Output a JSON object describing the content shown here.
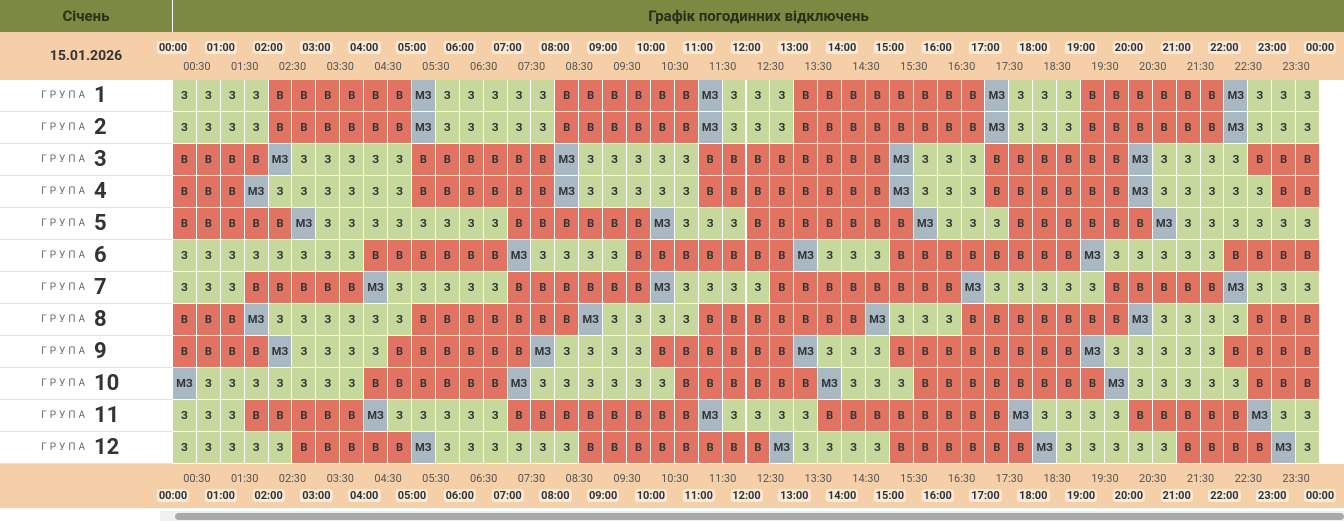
{
  "header": {
    "month": "Січень",
    "title": "Графік погодинних відключень",
    "date": "15.01.2026"
  },
  "hours": [
    "00:00",
    "01:00",
    "02:00",
    "03:00",
    "04:00",
    "05:00",
    "06:00",
    "07:00",
    "08:00",
    "09:00",
    "10:00",
    "11:00",
    "12:00",
    "13:00",
    "14:00",
    "15:00",
    "16:00",
    "17:00",
    "18:00",
    "19:00",
    "20:00",
    "21:00",
    "22:00",
    "23:00",
    "00:00"
  ],
  "half_hours": [
    "00:30",
    "01:30",
    "02:30",
    "03:30",
    "04:30",
    "05:30",
    "06:30",
    "07:30",
    "08:30",
    "09:30",
    "10:30",
    "11:30",
    "12:30",
    "13:30",
    "14:30",
    "15:30",
    "16:30",
    "17:30",
    "18:30",
    "19:30",
    "20:30",
    "21:30",
    "22:30",
    "23:30"
  ],
  "groups": [
    {
      "label": "ГРУПА",
      "number": 1,
      "cells": [
        "З",
        "З",
        "З",
        "З",
        "В",
        "В",
        "В",
        "В",
        "В",
        "В",
        "МЗ",
        "З",
        "З",
        "З",
        "З",
        "З",
        "В",
        "В",
        "В",
        "В",
        "В",
        "В",
        "МЗ",
        "З",
        "З",
        "З",
        "В",
        "В",
        "В",
        "В",
        "В",
        "В",
        "В",
        "В",
        "МЗ",
        "З",
        "З",
        "З",
        "В",
        "В",
        "В",
        "В",
        "В",
        "В",
        "МЗ",
        "З",
        "З",
        "З"
      ]
    },
    {
      "label": "ГРУПА",
      "number": 2,
      "cells": [
        "З",
        "З",
        "З",
        "З",
        "В",
        "В",
        "В",
        "В",
        "В",
        "В",
        "МЗ",
        "З",
        "З",
        "З",
        "З",
        "З",
        "В",
        "В",
        "В",
        "В",
        "В",
        "В",
        "МЗ",
        "З",
        "З",
        "З",
        "В",
        "В",
        "В",
        "В",
        "В",
        "В",
        "В",
        "В",
        "МЗ",
        "З",
        "З",
        "З",
        "В",
        "В",
        "В",
        "В",
        "В",
        "В",
        "МЗ",
        "З",
        "З",
        "З"
      ]
    },
    {
      "label": "ГРУПА",
      "number": 3,
      "cells": [
        "В",
        "В",
        "В",
        "В",
        "МЗ",
        "З",
        "З",
        "З",
        "З",
        "З",
        "В",
        "В",
        "В",
        "В",
        "В",
        "В",
        "МЗ",
        "З",
        "З",
        "З",
        "З",
        "З",
        "В",
        "В",
        "В",
        "В",
        "В",
        "В",
        "В",
        "В",
        "МЗ",
        "З",
        "З",
        "З",
        "В",
        "В",
        "В",
        "В",
        "В",
        "В",
        "МЗ",
        "З",
        "З",
        "З",
        "З",
        "В",
        "В",
        "В"
      ]
    },
    {
      "label": "ГРУПА",
      "number": 4,
      "cells": [
        "В",
        "В",
        "В",
        "МЗ",
        "З",
        "З",
        "З",
        "З",
        "З",
        "З",
        "В",
        "В",
        "В",
        "В",
        "В",
        "В",
        "МЗ",
        "З",
        "З",
        "З",
        "З",
        "З",
        "В",
        "В",
        "В",
        "В",
        "В",
        "В",
        "В",
        "В",
        "МЗ",
        "З",
        "З",
        "З",
        "В",
        "В",
        "В",
        "В",
        "В",
        "В",
        "МЗ",
        "З",
        "З",
        "З",
        "З",
        "З",
        "В",
        "В"
      ]
    },
    {
      "label": "ГРУПА",
      "number": 5,
      "cells": [
        "В",
        "В",
        "В",
        "В",
        "В",
        "МЗ",
        "З",
        "З",
        "З",
        "З",
        "З",
        "З",
        "З",
        "З",
        "В",
        "В",
        "В",
        "В",
        "В",
        "В",
        "МЗ",
        "З",
        "З",
        "З",
        "В",
        "В",
        "В",
        "В",
        "В",
        "В",
        "В",
        "МЗ",
        "З",
        "З",
        "З",
        "В",
        "В",
        "В",
        "В",
        "В",
        "В",
        "МЗ",
        "З",
        "З",
        "З",
        "З",
        "З",
        "З"
      ]
    },
    {
      "label": "ГРУПА",
      "number": 6,
      "cells": [
        "З",
        "З",
        "З",
        "З",
        "З",
        "З",
        "З",
        "З",
        "В",
        "В",
        "В",
        "В",
        "В",
        "В",
        "МЗ",
        "З",
        "З",
        "З",
        "З",
        "В",
        "В",
        "В",
        "В",
        "В",
        "В",
        "В",
        "МЗ",
        "З",
        "З",
        "З",
        "В",
        "В",
        "В",
        "В",
        "В",
        "В",
        "В",
        "В",
        "МЗ",
        "З",
        "З",
        "З",
        "З",
        "З",
        "В",
        "В",
        "В",
        "В"
      ]
    },
    {
      "label": "ГРУПА",
      "number": 7,
      "cells": [
        "З",
        "З",
        "З",
        "В",
        "В",
        "В",
        "В",
        "В",
        "МЗ",
        "З",
        "З",
        "З",
        "З",
        "З",
        "В",
        "В",
        "В",
        "В",
        "В",
        "В",
        "МЗ",
        "З",
        "З",
        "З",
        "З",
        "В",
        "В",
        "В",
        "В",
        "В",
        "В",
        "В",
        "В",
        "МЗ",
        "З",
        "З",
        "З",
        "З",
        "З",
        "В",
        "В",
        "В",
        "В",
        "В",
        "МЗ",
        "З",
        "З",
        "З"
      ]
    },
    {
      "label": "ГРУПА",
      "number": 8,
      "cells": [
        "В",
        "В",
        "В",
        "МЗ",
        "З",
        "З",
        "З",
        "З",
        "З",
        "З",
        "В",
        "В",
        "В",
        "В",
        "В",
        "В",
        "В",
        "МЗ",
        "З",
        "З",
        "З",
        "З",
        "В",
        "В",
        "В",
        "В",
        "В",
        "В",
        "В",
        "МЗ",
        "З",
        "З",
        "З",
        "В",
        "В",
        "В",
        "В",
        "В",
        "В",
        "В",
        "МЗ",
        "З",
        "З",
        "З",
        "З",
        "В",
        "В",
        "В"
      ]
    },
    {
      "label": "ГРУПА",
      "number": 9,
      "cells": [
        "В",
        "В",
        "В",
        "В",
        "МЗ",
        "З",
        "З",
        "З",
        "З",
        "В",
        "В",
        "В",
        "В",
        "В",
        "В",
        "МЗ",
        "З",
        "З",
        "З",
        "З",
        "В",
        "В",
        "В",
        "В",
        "В",
        "В",
        "МЗ",
        "З",
        "З",
        "З",
        "В",
        "В",
        "В",
        "В",
        "В",
        "В",
        "В",
        "В",
        "МЗ",
        "З",
        "З",
        "З",
        "З",
        "З",
        "В",
        "В",
        "В",
        "В"
      ]
    },
    {
      "label": "ГРУПА",
      "number": 10,
      "cells": [
        "МЗ",
        "З",
        "З",
        "З",
        "З",
        "З",
        "З",
        "З",
        "В",
        "В",
        "В",
        "В",
        "В",
        "В",
        "МЗ",
        "З",
        "З",
        "З",
        "З",
        "З",
        "З",
        "В",
        "В",
        "В",
        "В",
        "В",
        "В",
        "МЗ",
        "З",
        "З",
        "З",
        "В",
        "В",
        "В",
        "В",
        "В",
        "В",
        "В",
        "В",
        "МЗ",
        "З",
        "З",
        "З",
        "З",
        "З",
        "В",
        "В",
        "В"
      ]
    },
    {
      "label": "ГРУПА",
      "number": 11,
      "cells": [
        "З",
        "З",
        "З",
        "В",
        "В",
        "В",
        "В",
        "В",
        "МЗ",
        "З",
        "З",
        "З",
        "З",
        "З",
        "В",
        "В",
        "В",
        "В",
        "В",
        "В",
        "В",
        "В",
        "МЗ",
        "З",
        "З",
        "З",
        "З",
        "В",
        "В",
        "В",
        "В",
        "В",
        "В",
        "В",
        "В",
        "МЗ",
        "З",
        "З",
        "З",
        "З",
        "В",
        "В",
        "В",
        "В",
        "В",
        "МЗ",
        "З",
        "З"
      ]
    },
    {
      "label": "ГРУПА",
      "number": 12,
      "cells": [
        "З",
        "З",
        "З",
        "З",
        "З",
        "В",
        "В",
        "В",
        "В",
        "В",
        "МЗ",
        "З",
        "З",
        "З",
        "З",
        "З",
        "З",
        "В",
        "В",
        "В",
        "В",
        "В",
        "В",
        "В",
        "В",
        "МЗ",
        "З",
        "З",
        "З",
        "З",
        "В",
        "В",
        "В",
        "В",
        "В",
        "В",
        "МЗ",
        "З",
        "З",
        "З",
        "З",
        "З",
        "В",
        "В",
        "В",
        "В",
        "МЗ",
        "З"
      ]
    }
  ]
}
